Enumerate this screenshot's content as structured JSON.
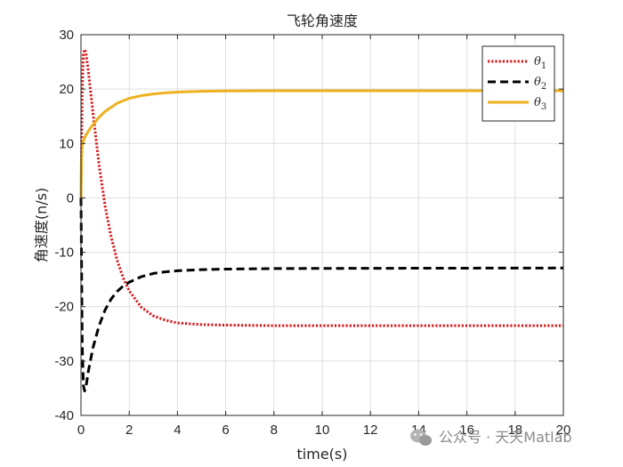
{
  "chart_data": {
    "type": "line",
    "title": "飞轮角速度",
    "xlabel": "time(s)",
    "ylabel": "角速度(n/s)",
    "xlim": [
      0,
      20
    ],
    "ylim": [
      -40,
      30
    ],
    "xticks": [
      0,
      2,
      4,
      6,
      8,
      10,
      12,
      14,
      16,
      18,
      20
    ],
    "yticks": [
      -40,
      -30,
      -20,
      -10,
      0,
      10,
      20,
      30
    ],
    "grid": true,
    "legend_position": "top-right",
    "series": [
      {
        "name": "θ1",
        "legend_symbol": "θ",
        "legend_subscript": "1",
        "color": "#d7191c",
        "style": "dotted",
        "points": [
          [
            0,
            0
          ],
          [
            0.05,
            20
          ],
          [
            0.1,
            26.5
          ],
          [
            0.15,
            27.3
          ],
          [
            0.2,
            26.8
          ],
          [
            0.3,
            23.5
          ],
          [
            0.5,
            15.5
          ],
          [
            0.75,
            6
          ],
          [
            1,
            -1.5
          ],
          [
            1.25,
            -7.2
          ],
          [
            1.5,
            -11.5
          ],
          [
            1.75,
            -14.7
          ],
          [
            2,
            -17.1
          ],
          [
            2.5,
            -20.1
          ],
          [
            3,
            -21.7
          ],
          [
            3.5,
            -22.5
          ],
          [
            4,
            -23.0
          ],
          [
            5,
            -23.3
          ],
          [
            6,
            -23.4
          ],
          [
            8,
            -23.5
          ],
          [
            12,
            -23.5
          ],
          [
            20,
            -23.5
          ]
        ]
      },
      {
        "name": "θ2",
        "legend_symbol": "θ",
        "legend_subscript": "2",
        "color": "#000000",
        "style": "dashed",
        "points": [
          [
            0,
            0
          ],
          [
            0.05,
            -27
          ],
          [
            0.1,
            -34.5
          ],
          [
            0.15,
            -35.5
          ],
          [
            0.2,
            -35
          ],
          [
            0.3,
            -32
          ],
          [
            0.5,
            -27.5
          ],
          [
            0.75,
            -23.5
          ],
          [
            1,
            -20.6
          ],
          [
            1.25,
            -18.6
          ],
          [
            1.5,
            -17.2
          ],
          [
            1.75,
            -16.2
          ],
          [
            2,
            -15.5
          ],
          [
            2.5,
            -14.5
          ],
          [
            3,
            -13.9
          ],
          [
            3.5,
            -13.6
          ],
          [
            4,
            -13.4
          ],
          [
            5,
            -13.2
          ],
          [
            6,
            -13.1
          ],
          [
            8,
            -13.0
          ],
          [
            12,
            -12.95
          ],
          [
            20,
            -12.9
          ]
        ]
      },
      {
        "name": "θ3",
        "legend_symbol": "θ",
        "legend_subscript": "3",
        "color": "#edb120",
        "style": "solid",
        "points": [
          [
            0,
            0
          ],
          [
            0.02,
            7
          ],
          [
            0.05,
            9.5
          ],
          [
            0.1,
            10.5
          ],
          [
            0.2,
            11.5
          ],
          [
            0.4,
            12.9
          ],
          [
            0.7,
            14.6
          ],
          [
            1,
            15.9
          ],
          [
            1.5,
            17.4
          ],
          [
            2,
            18.3
          ],
          [
            2.5,
            18.8
          ],
          [
            3,
            19.1
          ],
          [
            3.5,
            19.3
          ],
          [
            4,
            19.45
          ],
          [
            5,
            19.6
          ],
          [
            6,
            19.65
          ],
          [
            8,
            19.7
          ],
          [
            12,
            19.7
          ],
          [
            20,
            19.7
          ]
        ]
      }
    ]
  },
  "watermark": {
    "text": "公众号 · 天天Matlab",
    "icon": "wechat-icon"
  }
}
